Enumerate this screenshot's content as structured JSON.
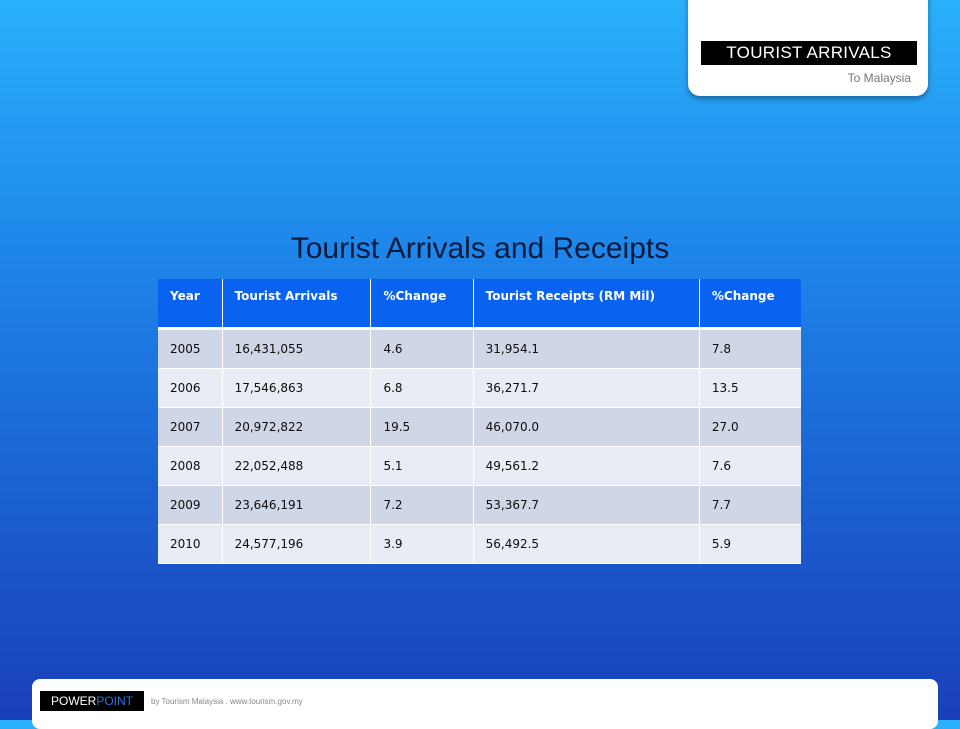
{
  "header": {
    "badge": "TOURIST ARRIVALS",
    "subtitle": "To Malaysia"
  },
  "slide": {
    "heading": "Tourist Arrivals and Receipts"
  },
  "table": {
    "columns": [
      "Year",
      "Tourist Arrivals",
      "%Change",
      "Tourist Receipts (RM Mil)",
      "%Change"
    ],
    "rows": [
      [
        "2005",
        "16,431,055",
        "4.6",
        "31,954.1",
        "7.8"
      ],
      [
        "2006",
        "17,546,863",
        "6.8",
        "36,271.7",
        "13.5"
      ],
      [
        "2007",
        "20,972,822",
        "19.5",
        "46,070.0",
        "27.0"
      ],
      [
        "2008",
        "22,052,488",
        "5.1",
        "49,561.2",
        "7.6"
      ],
      [
        "2009",
        "23,646,191",
        "7.2",
        "53,367.7",
        "7.7"
      ],
      [
        "2010",
        "24,577,196",
        "3.9",
        "56,492.5",
        "5.9"
      ]
    ]
  },
  "footer": {
    "brand_part1": "POWER",
    "brand_part2": "POINT",
    "credit": "by Tourism Malaysia . www.tourism.gov.my"
  }
}
